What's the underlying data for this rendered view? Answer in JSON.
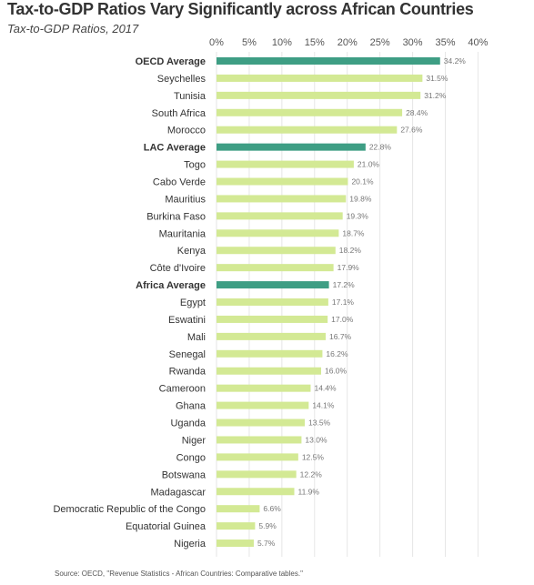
{
  "chart_data": {
    "type": "bar",
    "orientation": "horizontal",
    "title": "Tax-to-GDP Ratios Vary Significantly across African Countries",
    "subtitle": "Tax-to-GDP Ratios, 2017",
    "source": "Source: OECD, \"Revenue Statistics - African Countries: Comparative tables.\"",
    "xlim": [
      0,
      40
    ],
    "x_ticks": [
      "0%",
      "5%",
      "10%",
      "15%",
      "20%",
      "25%",
      "30%",
      "35%",
      "40%"
    ],
    "grid": true,
    "colors": {
      "average": "#3e9e84",
      "country": "#d3e994"
    },
    "categories": [
      "OECD Average",
      "Seychelles",
      "Tunisia",
      "South Africa",
      "Morocco",
      "LAC Average",
      "Togo",
      "Cabo Verde",
      "Mauritius",
      "Burkina Faso",
      "Mauritania",
      "Kenya",
      "Côte d'Ivoire",
      "Africa Average",
      "Egypt",
      "Eswatini",
      "Mali",
      "Senegal",
      "Rwanda",
      "Cameroon",
      "Ghana",
      "Uganda",
      "Niger",
      "Congo",
      "Botswana",
      "Madagascar",
      "Democratic Republic of the Congo",
      "Equatorial Guinea",
      "Nigeria"
    ],
    "values": [
      34.2,
      31.5,
      31.2,
      28.4,
      27.6,
      22.8,
      21.0,
      20.1,
      19.8,
      19.3,
      18.7,
      18.2,
      17.9,
      17.2,
      17.1,
      17.0,
      16.7,
      16.2,
      16.0,
      14.4,
      14.1,
      13.5,
      13.0,
      12.5,
      12.2,
      11.9,
      6.6,
      5.9,
      5.7
    ],
    "value_labels": [
      "34.2%",
      "31.5%",
      "31.2%",
      "28.4%",
      "27.6%",
      "22.8%",
      "21.0%",
      "20.1%",
      "19.8%",
      "19.3%",
      "18.7%",
      "18.2%",
      "17.9%",
      "17.2%",
      "17.1%",
      "17.0%",
      "16.7%",
      "16.2%",
      "16.0%",
      "14.4%",
      "14.1%",
      "13.5%",
      "13.0%",
      "12.5%",
      "12.2%",
      "11.9%",
      "6.6%",
      "5.9%",
      "5.7%"
    ],
    "highlighted": [
      "OECD Average",
      "LAC Average",
      "Africa Average"
    ]
  }
}
